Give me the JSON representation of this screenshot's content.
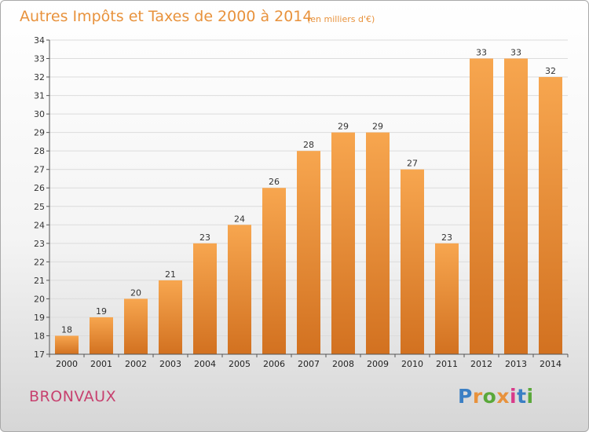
{
  "title": "Autres Impôts et Taxes de 2000 à 2014",
  "unit_label": "(en milliers d'€)",
  "commune": "BRONVAUX",
  "logo": {
    "text": "Proxiti",
    "letter_colors": [
      "#3b7fc4",
      "#e8923c",
      "#5aa83a",
      "#e8923c",
      "#d93a8a",
      "#3b7fc4",
      "#5aa83a"
    ]
  },
  "colors": {
    "bar_top": "#f7a64f",
    "bar_bottom": "#d27120",
    "title": "#e8923c",
    "commune": "#c7416f"
  },
  "chart_data": {
    "type": "bar",
    "categories": [
      "2000",
      "2001",
      "2002",
      "2003",
      "2004",
      "2005",
      "2006",
      "2007",
      "2008",
      "2009",
      "2010",
      "2011",
      "2012",
      "2013",
      "2014"
    ],
    "values": [
      18,
      19,
      20,
      21,
      23,
      24,
      26,
      28,
      29,
      29,
      27,
      23,
      33,
      33,
      32
    ],
    "ylim": [
      17,
      34
    ],
    "yticks": [
      17,
      18,
      19,
      20,
      21,
      22,
      23,
      24,
      25,
      26,
      27,
      28,
      29,
      30,
      31,
      32,
      33,
      34
    ],
    "grid": true,
    "legend": "none"
  }
}
